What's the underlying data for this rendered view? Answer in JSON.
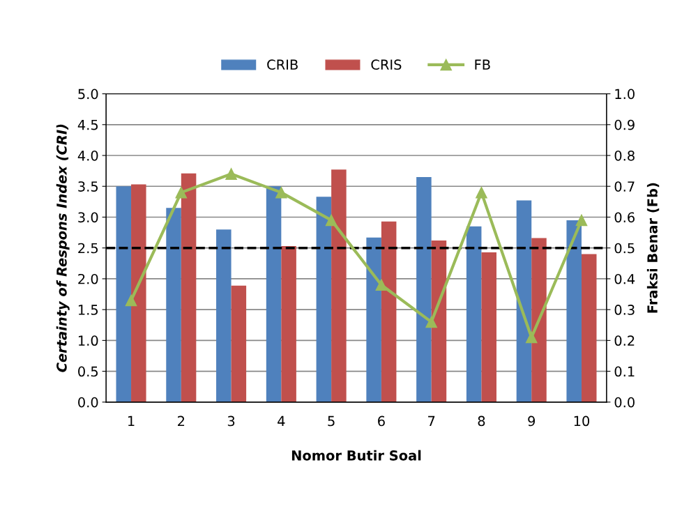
{
  "chart_data": {
    "type": "bar",
    "xlabel": "Nomor Butir Soal",
    "ylabel": "Certainty of Respons Index (CRI)",
    "y2label": "Fraksi Benar (Fb)",
    "categories": [
      "1",
      "2",
      "3",
      "4",
      "5",
      "6",
      "7",
      "8",
      "9",
      "10"
    ],
    "series": [
      {
        "name": "CRIB",
        "color": "#4f81bd",
        "values": [
          3.5,
          3.15,
          2.8,
          3.5,
          3.33,
          2.67,
          3.65,
          2.85,
          3.27,
          2.95
        ]
      },
      {
        "name": "CRIS",
        "color": "#c0504d",
        "values": [
          3.53,
          3.71,
          1.89,
          2.53,
          3.77,
          2.93,
          2.62,
          2.43,
          2.66,
          2.4
        ]
      },
      {
        "name": "FB",
        "type": "line",
        "axis": "y2",
        "color": "#9bbb59",
        "marker": "triangle",
        "values": [
          0.33,
          0.68,
          0.74,
          0.68,
          0.59,
          0.38,
          0.26,
          0.68,
          0.21,
          0.59
        ]
      }
    ],
    "ylim": [
      0,
      5
    ],
    "yticks": [
      {
        "value": 0,
        "label": "0.0"
      },
      {
        "value": 0.5,
        "label": "0.5"
      },
      {
        "value": 1,
        "label": "1.0"
      },
      {
        "value": 1.5,
        "label": "1.5"
      },
      {
        "value": 2,
        "label": "2.0"
      },
      {
        "value": 2.5,
        "label": "2.5"
      },
      {
        "value": 3,
        "label": "3.0"
      },
      {
        "value": 3.5,
        "label": "3.5"
      },
      {
        "value": 4,
        "label": "4.0"
      },
      {
        "value": 4.5,
        "label": "4.5"
      },
      {
        "value": 5,
        "label": "5.0"
      }
    ],
    "y2lim": [
      0,
      1
    ],
    "y2ticks": [
      {
        "value": 0,
        "label": "0.0"
      },
      {
        "value": 0.1,
        "label": "0.1"
      },
      {
        "value": 0.2,
        "label": "0.2"
      },
      {
        "value": 0.3,
        "label": "0.3"
      },
      {
        "value": 0.4,
        "label": "0.4"
      },
      {
        "value": 0.5,
        "label": "0.5"
      },
      {
        "value": 0.6,
        "label": "0.6"
      },
      {
        "value": 0.7,
        "label": "0.7"
      },
      {
        "value": 0.8,
        "label": "0.8"
      },
      {
        "value": 0.9,
        "label": "0.9"
      },
      {
        "value": 1,
        "label": "1.0"
      }
    ],
    "ref_lines": [
      {
        "axis": "y",
        "value": 2.5,
        "color": "#000000",
        "line_style": "dashed"
      }
    ],
    "grid": "y",
    "legend": "top"
  }
}
